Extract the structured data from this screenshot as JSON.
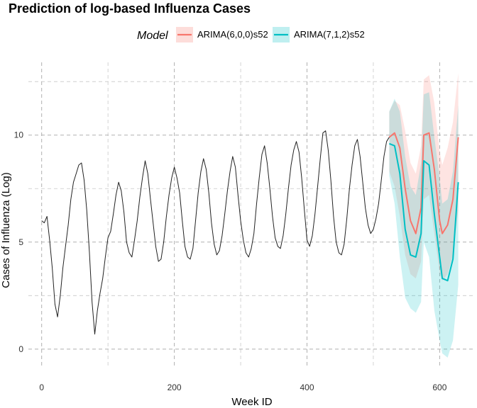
{
  "chart_data": {
    "type": "line",
    "title": "Prediction of log-based Influenza Cases",
    "xlabel": "Week ID",
    "ylabel": "Cases of Influenza (Log)",
    "xlim": [
      -20,
      652
    ],
    "ylim": [
      -0.8,
      13.4
    ],
    "x_ticks": [
      0,
      200,
      400,
      600
    ],
    "x_tick_labels": [
      "0",
      "200",
      "400",
      "600"
    ],
    "y_ticks": [
      0,
      5,
      10
    ],
    "y_tick_labels": [
      "0",
      "5",
      "10"
    ],
    "grid": true,
    "legend": {
      "title": "Model",
      "position": "top"
    },
    "history": {
      "x": [
        0,
        4,
        8,
        12,
        16,
        20,
        24,
        28,
        32,
        36,
        40,
        44,
        48,
        52,
        56,
        60,
        64,
        68,
        72,
        76,
        80,
        84,
        88,
        92,
        96,
        100,
        104,
        108,
        112,
        116,
        120,
        124,
        128,
        132,
        136,
        140,
        144,
        148,
        152,
        156,
        160,
        164,
        168,
        172,
        176,
        180,
        184,
        188,
        192,
        196,
        200,
        204,
        208,
        212,
        216,
        220,
        224,
        228,
        232,
        236,
        240,
        244,
        248,
        252,
        256,
        260,
        264,
        268,
        272,
        276,
        280,
        284,
        288,
        292,
        296,
        300,
        304,
        308,
        312,
        316,
        320,
        324,
        328,
        332,
        336,
        340,
        344,
        348,
        352,
        356,
        360,
        364,
        368,
        372,
        376,
        380,
        384,
        388,
        392,
        396,
        400,
        404,
        408,
        412,
        416,
        420,
        424,
        428,
        432,
        436,
        440,
        444,
        448,
        452,
        456,
        460,
        464,
        468,
        472,
        476,
        480,
        484,
        488,
        492,
        496,
        500,
        504,
        508,
        512,
        516,
        520,
        524
      ],
      "y": [
        6.0,
        5.9,
        6.2,
        5.1,
        3.8,
        2.1,
        1.5,
        2.5,
        3.8,
        4.8,
        5.8,
        7.0,
        7.8,
        8.2,
        8.6,
        8.7,
        7.9,
        6.5,
        4.5,
        2.2,
        0.7,
        1.8,
        2.6,
        3.3,
        4.3,
        5.2,
        5.5,
        6.3,
        7.2,
        7.8,
        7.4,
        6.4,
        5.0,
        4.5,
        4.3,
        5.1,
        6.0,
        7.1,
        8.0,
        8.8,
        8.2,
        7.0,
        5.9,
        4.8,
        4.1,
        4.2,
        5.0,
        6.2,
        7.2,
        8.0,
        8.5,
        8.0,
        7.3,
        6.0,
        4.8,
        4.3,
        4.2,
        4.7,
        6.0,
        7.3,
        8.3,
        8.9,
        8.4,
        7.3,
        5.9,
        4.9,
        4.4,
        4.6,
        5.3,
        6.3,
        7.4,
        8.3,
        9.0,
        8.5,
        7.2,
        6.0,
        5.1,
        4.5,
        4.3,
        4.7,
        5.4,
        6.8,
        8.0,
        9.1,
        9.5,
        8.7,
        7.5,
        6.2,
        5.2,
        4.8,
        4.7,
        5.3,
        6.3,
        7.5,
        8.6,
        9.3,
        9.7,
        9.2,
        8.0,
        6.5,
        5.1,
        4.8,
        5.3,
        6.3,
        7.6,
        8.9,
        10.1,
        10.2,
        9.3,
        7.9,
        6.2,
        5.0,
        4.5,
        4.4,
        4.9,
        6.1,
        7.5,
        8.6,
        9.5,
        9.8,
        9.0,
        7.8,
        6.6,
        5.8,
        5.4,
        5.6,
        6.1,
        6.8,
        7.9,
        9.0,
        9.7,
        9.9
      ]
    },
    "series": [
      {
        "name": "ARIMA(6,0,0)s52",
        "color": "#f8766d",
        "x": [
          524,
          532,
          540,
          548,
          556,
          564,
          572,
          576,
          584,
          592,
          600,
          604,
          612,
          620,
          628
        ],
        "y": [
          9.9,
          10.1,
          9.4,
          7.5,
          6.0,
          5.4,
          6.6,
          10.0,
          10.1,
          8.4,
          6.0,
          5.4,
          5.8,
          7.0,
          9.9
        ],
        "lower": [
          8.3,
          7.6,
          6.2,
          4.4,
          3.5,
          3.3,
          4.1,
          7.0,
          7.2,
          5.4,
          3.6,
          3.2,
          3.5,
          4.4,
          6.5
        ],
        "upper": [
          11.1,
          11.6,
          11.4,
          10.2,
          8.7,
          8.2,
          9.5,
          12.6,
          12.8,
          11.5,
          9.2,
          8.6,
          9.4,
          10.6,
          12.9
        ]
      },
      {
        "name": "ARIMA(7,1,2)s52",
        "color": "#00bfc4",
        "x": [
          524,
          532,
          540,
          548,
          556,
          564,
          572,
          576,
          584,
          592,
          600,
          604,
          612,
          620,
          628
        ],
        "y": [
          9.6,
          9.5,
          8.2,
          5.6,
          4.4,
          4.3,
          5.4,
          8.8,
          8.6,
          6.3,
          4.3,
          3.3,
          3.2,
          4.2,
          7.8
        ],
        "lower": [
          8.1,
          6.8,
          4.3,
          2.4,
          1.9,
          1.7,
          2.2,
          5.0,
          4.3,
          1.8,
          0.4,
          -0.2,
          -0.4,
          0.4,
          3.0
        ],
        "upper": [
          11.1,
          11.7,
          11.1,
          9.0,
          7.6,
          7.2,
          8.7,
          11.9,
          12.0,
          9.9,
          8.0,
          6.8,
          7.0,
          8.3,
          11.4
        ]
      }
    ]
  }
}
